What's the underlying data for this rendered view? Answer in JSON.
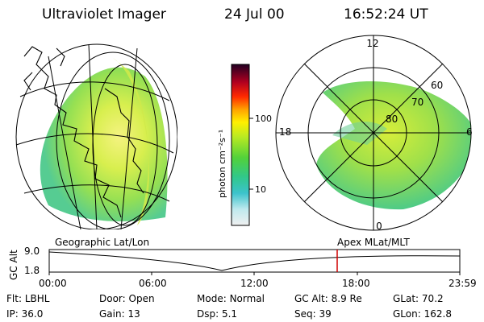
{
  "header": {
    "title": "Ultraviolet Imager",
    "date": "24 Jul 00",
    "time": "16:52:24 UT"
  },
  "panels": {
    "left_label": "Geographic Lat/Lon",
    "right_label": "Apex MLat/MLT"
  },
  "colorbar": {
    "unit_label": "photon cm⁻²s⁻¹",
    "ticks": [
      "100",
      "10"
    ]
  },
  "polar": {
    "mlt_labels": [
      "12",
      "18",
      "6",
      "0"
    ],
    "mlat_labels": [
      "60",
      "70",
      "80"
    ]
  },
  "altitude_strip": {
    "ylabel": "GC Alt",
    "y_ticks": [
      "9.0",
      "1.8"
    ],
    "time_ticks": [
      "00:00",
      "06:00",
      "12:00",
      "18:00",
      "23:59"
    ],
    "marker_color": "#d00000"
  },
  "meta": {
    "row1": [
      {
        "label": "Flt:",
        "value": "LBHL"
      },
      {
        "label": "Door:",
        "value": "Open"
      },
      {
        "label": "Mode:",
        "value": "Normal"
      },
      {
        "label": "GC Alt:",
        "value": "8.9 Re"
      },
      {
        "label": "GLat:",
        "value": "70.2"
      }
    ],
    "row2": [
      {
        "label": "IP:",
        "value": "36.0"
      },
      {
        "label": "Gain:",
        "value": "13"
      },
      {
        "label": "Dsp:",
        "value": "5.1"
      },
      {
        "label": "Seq:",
        "value": "39"
      },
      {
        "label": "GLon:",
        "value": "162.8"
      }
    ]
  }
}
